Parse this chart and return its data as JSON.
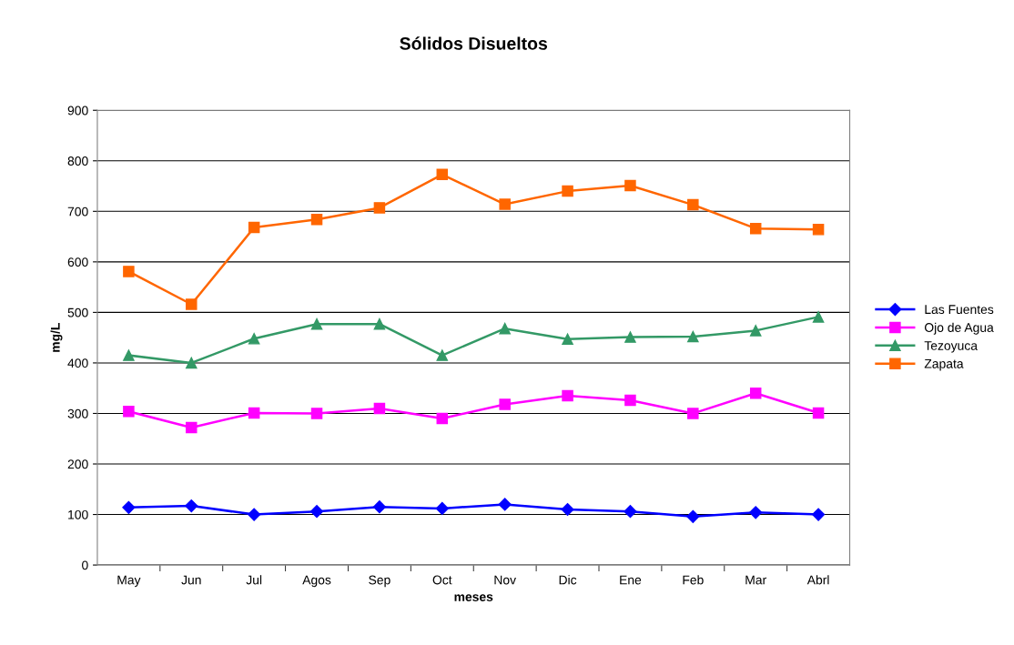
{
  "chart_data": {
    "type": "line",
    "title": "Sólidos Disueltos",
    "xlabel": "meses",
    "ylabel": "mg/L",
    "categories": [
      "May",
      "Jun",
      "Jul",
      "Agos",
      "Sep",
      "Oct",
      "Nov",
      "Dic",
      "Ene",
      "Feb",
      "Mar",
      "Abrl"
    ],
    "series": [
      {
        "name": "Las Fuentes",
        "color": "#0000ff",
        "marker": "diamond",
        "values": [
          114,
          117,
          100,
          106,
          115,
          112,
          120,
          110,
          106,
          96,
          104,
          100
        ]
      },
      {
        "name": "Ojo de Agua",
        "color": "#ff00ff",
        "marker": "square",
        "values": [
          304,
          272,
          301,
          300,
          310,
          290,
          318,
          335,
          326,
          300,
          340,
          301
        ]
      },
      {
        "name": "Tezoyuca",
        "color": "#339966",
        "marker": "triangle",
        "values": [
          415,
          400,
          448,
          477,
          477,
          415,
          468,
          447,
          451,
          452,
          464,
          491
        ]
      },
      {
        "name": "Zapata",
        "color": "#ff6600",
        "marker": "square",
        "values": [
          581,
          516,
          668,
          684,
          707,
          773,
          714,
          740,
          751,
          713,
          666,
          664
        ]
      }
    ],
    "ylim": [
      0,
      900
    ],
    "yticks": [
      0,
      100,
      200,
      300,
      400,
      500,
      600,
      700,
      800,
      900
    ],
    "grid": "y",
    "legend": "right",
    "line_style": "solid"
  }
}
